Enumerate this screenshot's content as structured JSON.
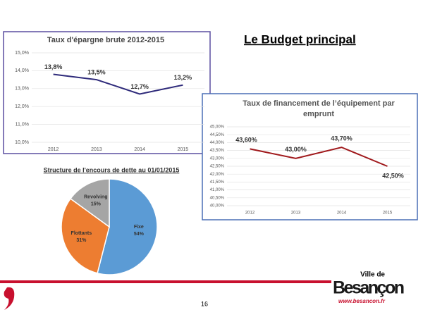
{
  "slide_title": "Le Budget principal",
  "page_number": "16",
  "logo": {
    "top": "Ville de",
    "name": "Besançon",
    "url": "www.besancon.fr"
  },
  "chart_data": [
    {
      "type": "line",
      "title": "Taux d'épargne brute 2012-2015",
      "categories": [
        "2012",
        "2013",
        "2014",
        "2015"
      ],
      "values": [
        13.8,
        13.5,
        12.7,
        13.2
      ],
      "value_labels": [
        "13,8%",
        "13,5%",
        "12,7%",
        "13,2%"
      ],
      "color": "#2e2a7a",
      "ylim": [
        10,
        15
      ],
      "yticks": [
        {
          "value": 10,
          "label": "10,0%"
        },
        {
          "value": 11,
          "label": "11,0%"
        },
        {
          "value": 12,
          "label": "12,0%"
        },
        {
          "value": 13,
          "label": "13,0%"
        },
        {
          "value": 14,
          "label": "14,0%"
        },
        {
          "value": 15,
          "label": "15,0%"
        }
      ]
    },
    {
      "type": "line",
      "title": "Taux de financement de l’équipement par emprunt",
      "categories": [
        "2012",
        "2013",
        "2014",
        "2015"
      ],
      "values": [
        43.6,
        43.0,
        43.7,
        42.5
      ],
      "value_labels": [
        "43,60%",
        "43,00%",
        "43,70%",
        "42,50%"
      ],
      "color": "#a0191c",
      "ylim": [
        40,
        45
      ],
      "yticks": [
        {
          "value": 40,
          "label": "40,00%"
        },
        {
          "value": 40.5,
          "label": "40,50%"
        },
        {
          "value": 41,
          "label": "41,00%"
        },
        {
          "value": 41.5,
          "label": "41,50%"
        },
        {
          "value": 42,
          "label": "42,00%"
        },
        {
          "value": 42.5,
          "label": "42,50%"
        },
        {
          "value": 43,
          "label": "43,00%"
        },
        {
          "value": 43.5,
          "label": "43,50%"
        },
        {
          "value": 44,
          "label": "44,00%"
        },
        {
          "value": 44.5,
          "label": "44,50%"
        },
        {
          "value": 45,
          "label": "45,00%"
        }
      ]
    },
    {
      "type": "pie",
      "title": "Structure de l'encours de dette au 01/01/2015",
      "categories": [
        "Fixe",
        "Flottants",
        "Revolving"
      ],
      "values": [
        54,
        31,
        15
      ],
      "value_labels": [
        "54%",
        "31%",
        "15%"
      ],
      "colors": [
        "#5b9bd5",
        "#ed7d31",
        "#a5a5a5"
      ]
    }
  ]
}
